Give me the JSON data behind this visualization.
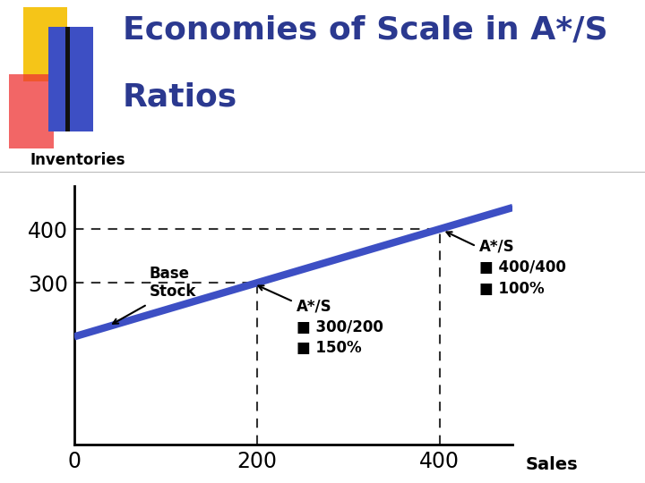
{
  "title_line1": "Economies of Scale in A*/S",
  "title_line2": "Ratios",
  "title_color": "#2B3990",
  "title_fontsize": 26,
  "ylabel": "Inventories",
  "xlabel": "Sales",
  "xlim": [
    0,
    480
  ],
  "ylim": [
    0,
    480
  ],
  "xticks": [
    0,
    200,
    400
  ],
  "yticks": [
    300,
    400
  ],
  "line_y_intercept": 200,
  "line_slope": 0.5,
  "line_color": "#3D4FC4",
  "line_width": 6,
  "dashed_color": "#333333",
  "label1_text": "A*/S\n■ 300/200\n■ 150%",
  "label2_text": "A*/S\n■ 400/400\n■ 100%",
  "base_stock_text": "Base\nStock",
  "bg_color": "#FFFFFF",
  "text_color": "#000000",
  "axis_color": "#000000",
  "font_size_annot": 12,
  "font_size_ticks": 17,
  "font_size_ylabel": 12,
  "font_size_xlabel": 14,
  "dec_yellow": "#F5C518",
  "dec_red": "#EE3333",
  "dec_blue": "#3D4FC4",
  "dec_black": "#111111"
}
